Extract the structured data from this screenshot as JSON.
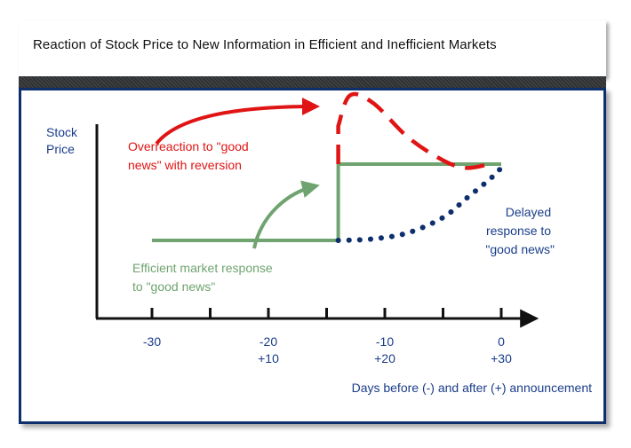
{
  "title": "Reaction of Stock Price to New Information in Efficient and Inefficient Markets",
  "colors": {
    "efficient": "#6fa36f",
    "overreaction": "#e01414",
    "delayed": "#0d2f6c",
    "axis": "#111111",
    "label_blue": "#1a3d8a",
    "panel_border": "#0d2f6c"
  },
  "chart_data": {
    "type": "line",
    "title": "Reaction of Stock Price to New Information in Efficient and Inefficient Markets",
    "ylabel": [
      "Stock",
      "Price"
    ],
    "xlabel": "Days before (-) and after (+) announcement",
    "x_ticks": [
      {
        "x": -30,
        "lines": [
          "-30"
        ]
      },
      {
        "x": -20,
        "lines": [
          "-20",
          "+10"
        ]
      },
      {
        "x": -10,
        "lines": [
          "-10",
          "+20"
        ]
      },
      {
        "x": 0,
        "lines": [
          "0",
          "+30"
        ]
      }
    ],
    "series": [
      {
        "style": "solid",
        "points": [
          [
            -30,
            1.0
          ],
          [
            -14,
            1.0
          ],
          [
            -14,
            2.0
          ],
          [
            0,
            2.0
          ]
        ]
      },
      {
        "style": "dashed",
        "points": [
          [
            -14,
            2.0
          ],
          [
            -14,
            2.5
          ],
          [
            -13,
            2.9
          ],
          [
            -11,
            2.8
          ],
          [
            -8,
            2.35
          ],
          [
            -5,
            2.05
          ],
          [
            -3,
            1.95
          ],
          [
            -1,
            2.0
          ]
        ]
      },
      {
        "style": "dotted",
        "points": [
          [
            -14,
            1.0
          ],
          [
            -11,
            1.02
          ],
          [
            -8,
            1.1
          ],
          [
            -5,
            1.3
          ],
          [
            -3,
            1.55
          ],
          [
            -1,
            1.8
          ],
          [
            0,
            1.95
          ]
        ]
      }
    ],
    "annotations": {
      "overreaction": [
        "Overreaction to \"good",
        "news\" with reversion"
      ],
      "efficient": [
        "Efficient market response",
        "to \"good news\""
      ],
      "delayed": [
        "Delayed",
        "response to",
        "\"good news\""
      ]
    },
    "grid": false,
    "legend": "none"
  }
}
